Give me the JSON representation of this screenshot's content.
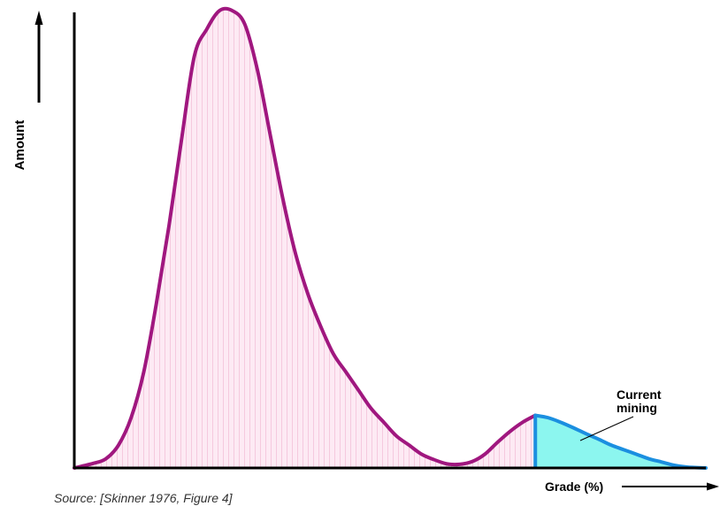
{
  "chart_data": {
    "type": "area",
    "xlabel": "Grade (%)",
    "ylabel": "Amount",
    "source": "Source: [Skinner 1976, Figure 4]",
    "annotation": {
      "text_line1": "Current",
      "text_line2": "mining"
    },
    "series": [
      {
        "values": [
          [
            0,
            0
          ],
          [
            3,
            1
          ],
          [
            5,
            2
          ],
          [
            7,
            5
          ],
          [
            9,
            11
          ],
          [
            11,
            21
          ],
          [
            13,
            36
          ],
          [
            15,
            53
          ],
          [
            17,
            72
          ],
          [
            19,
            90
          ],
          [
            21,
            96
          ],
          [
            23,
            100
          ],
          [
            25,
            100
          ],
          [
            27,
            97
          ],
          [
            29,
            87
          ],
          [
            31,
            73
          ],
          [
            33,
            59
          ],
          [
            35,
            47
          ],
          [
            37,
            38
          ],
          [
            39,
            31
          ],
          [
            41,
            25
          ],
          [
            43,
            21
          ],
          [
            45,
            17
          ],
          [
            47,
            13
          ],
          [
            49,
            10
          ],
          [
            51,
            7
          ],
          [
            53,
            5
          ],
          [
            55,
            3
          ],
          [
            57,
            1.8
          ],
          [
            59,
            0.9
          ],
          [
            61,
            0.8
          ],
          [
            63,
            1.4
          ],
          [
            65,
            3
          ],
          [
            67,
            5.6
          ],
          [
            69,
            8
          ],
          [
            71,
            10
          ],
          [
            73,
            11.5
          ],
          [
            75,
            11
          ],
          [
            77,
            10
          ],
          [
            79,
            8.8
          ],
          [
            81,
            7.5
          ],
          [
            83,
            6.3
          ],
          [
            85,
            5
          ],
          [
            87,
            4
          ],
          [
            89,
            3
          ],
          [
            91,
            2
          ],
          [
            93,
            1.3
          ],
          [
            95,
            0.6
          ],
          [
            97,
            0.2
          ],
          [
            100,
            0
          ]
        ]
      }
    ],
    "highlight_from_x": 73,
    "colors": {
      "curve": "#a0177f",
      "fill": "#fdeaf4",
      "fill_hatch": "#f5c9de",
      "current_fill": "#8cf6ef",
      "current_stroke": "#1b8fe0",
      "axis": "#000000"
    }
  }
}
